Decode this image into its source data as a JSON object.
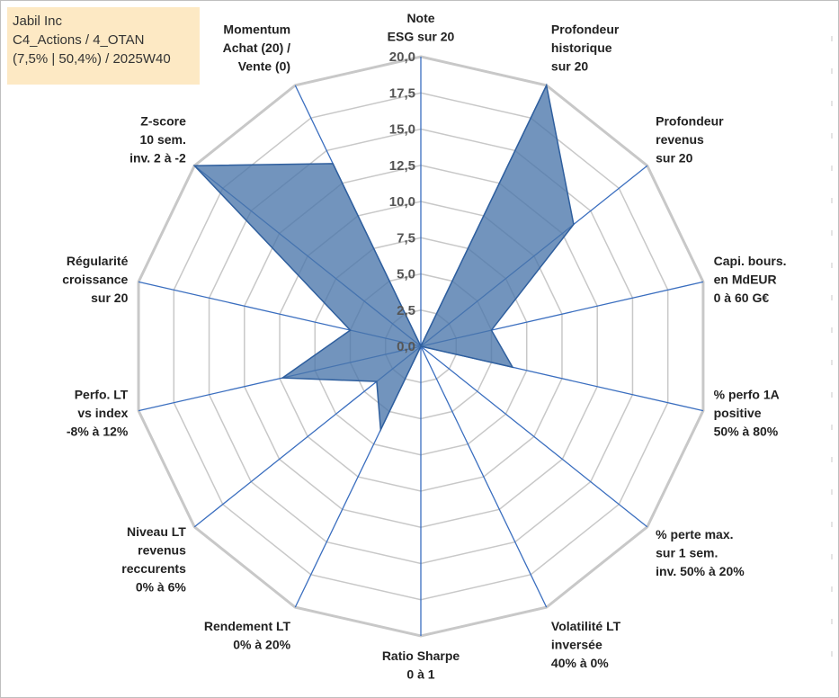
{
  "info": {
    "line1": "Jabil Inc",
    "line2": "C4_Actions / 4_OTAN",
    "line3": "(7,5% | 50,4%) / 2025W40"
  },
  "colors": {
    "fill": "#4a76ab",
    "stroke": "#2f5f9e",
    "axis": "#3a6ebf",
    "grid": "#c8c8c8",
    "box": "#fde9c4"
  },
  "chart_data": {
    "type": "radar",
    "title": "",
    "rmin": 0,
    "rmax": 20,
    "ticks": [
      "0,0",
      "2,5",
      "5,0",
      "7,5",
      "10,0",
      "12,5",
      "15,0",
      "17,5",
      "20,0"
    ],
    "axes": [
      {
        "label": [
          "Note",
          "ESG sur 20"
        ],
        "value": 0
      },
      {
        "label": [
          "Profondeur",
          "historique",
          "sur 20"
        ],
        "value": 20
      },
      {
        "label": [
          "Profondeur",
          "revenus",
          "sur 20"
        ],
        "value": 13.5
      },
      {
        "label": [
          "Capi. bours.",
          "en MdEUR",
          "0 à 60 G€"
        ],
        "value": 5.0
      },
      {
        "label": [
          "% perfo 1A",
          "positive",
          "50% à 80%"
        ],
        "value": 6.5
      },
      {
        "label": [
          "% perte max.",
          "sur 1 sem.",
          "inv. 50% à 20%"
        ],
        "value": 0
      },
      {
        "label": [
          "Volatilité LT",
          "inversée",
          "40% à 0%"
        ],
        "value": 0
      },
      {
        "label": [
          "Ratio Sharpe",
          "0 à 1"
        ],
        "value": 0
      },
      {
        "label": [
          "Rendement LT",
          "0% à 20%"
        ],
        "value": 6.4
      },
      {
        "label": [
          "Niveau LT",
          "revenus",
          "reccurents",
          "0% à 6%"
        ],
        "value": 3.9
      },
      {
        "label": [
          "Perfo. LT",
          "vs index",
          "-8% à 12%"
        ],
        "value": 9.8
      },
      {
        "label": [
          "Régularité",
          "croissance",
          "sur 20"
        ],
        "value": 5.0
      },
      {
        "label": [
          "Z-score",
          "10 sem.",
          "inv. 2 à -2"
        ],
        "value": 20
      },
      {
        "label": [
          "Momentum",
          "Achat (20) /",
          "Vente (0)"
        ],
        "value": 14.0
      }
    ]
  }
}
